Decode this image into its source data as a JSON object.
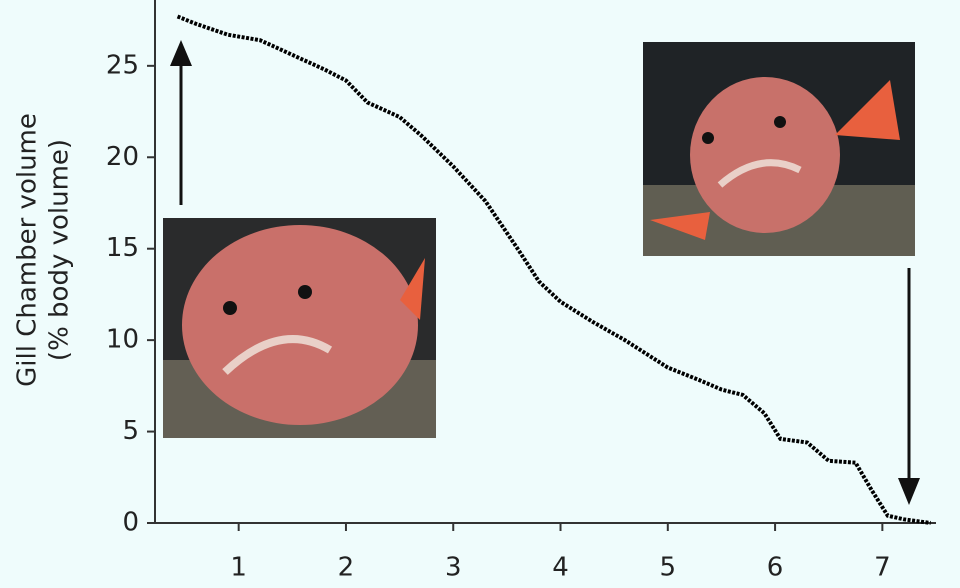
{
  "chart_data": {
    "type": "line",
    "y_label": [
      "Gill Chamber volume",
      "(% body volume)"
    ],
    "series": [
      {
        "color": "#000000",
        "x": [
          0.43,
          0.6,
          0.9,
          1.2,
          1.5,
          1.8,
          2.0,
          2.2,
          2.5,
          2.7,
          3.0,
          3.3,
          3.6,
          3.8,
          4.0,
          4.3,
          4.6,
          5.0,
          5.3,
          5.5,
          5.7,
          5.9,
          6.05,
          6.3,
          6.5,
          6.75,
          6.9,
          7.05,
          7.2,
          7.45
        ],
        "values": [
          27.7,
          27.3,
          26.7,
          26.4,
          25.6,
          24.8,
          24.2,
          23.0,
          22.2,
          21.2,
          19.5,
          17.6,
          15.0,
          13.2,
          12.1,
          11.0,
          10.0,
          8.5,
          7.8,
          7.3,
          7.0,
          6.0,
          4.6,
          4.4,
          3.4,
          3.3,
          1.8,
          0.4,
          0.2,
          0.0
        ]
      }
    ],
    "xlim": [
      0.22,
      7.5
    ],
    "xticks": [
      1,
      2,
      3,
      4,
      5,
      6,
      7
    ],
    "ylim": [
      0,
      28.6
    ],
    "yticks": [
      0,
      5,
      10,
      15,
      20,
      25
    ]
  }
}
